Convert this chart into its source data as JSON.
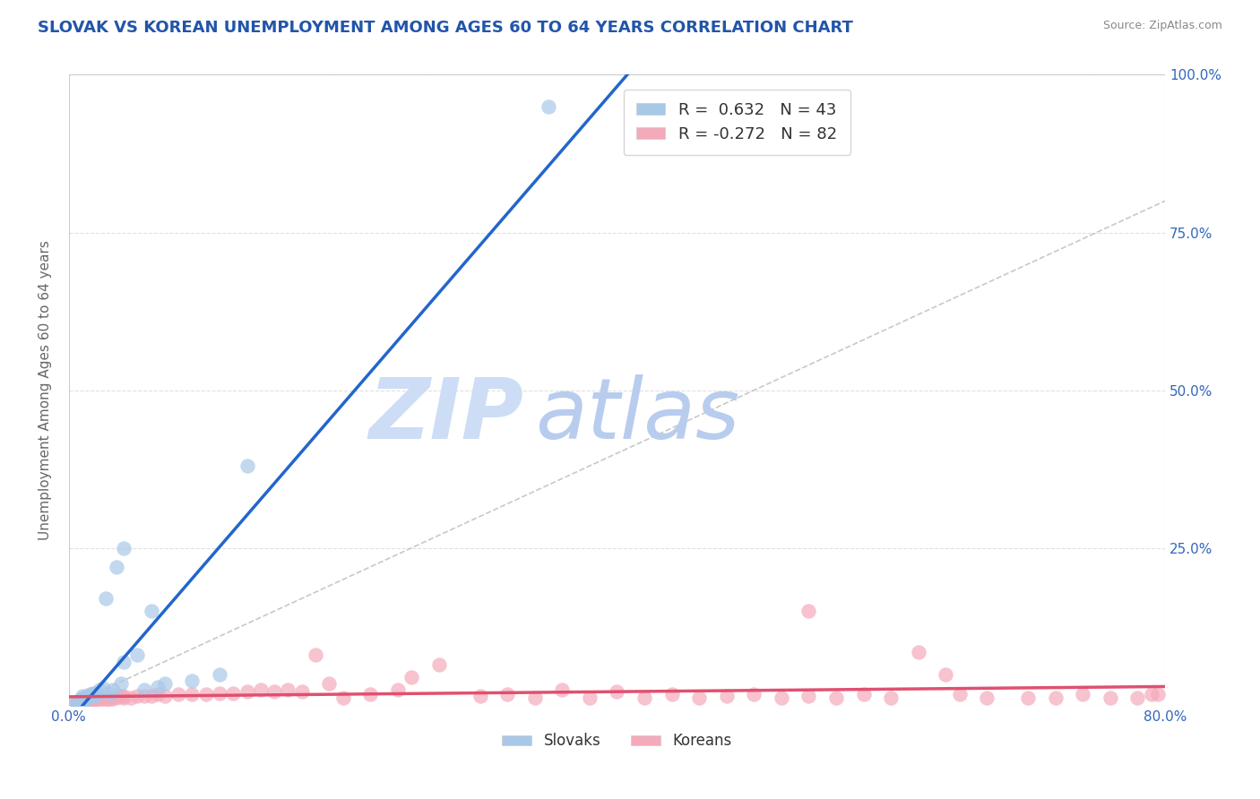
{
  "title": "SLOVAK VS KOREAN UNEMPLOYMENT AMONG AGES 60 TO 64 YEARS CORRELATION CHART",
  "source": "Source: ZipAtlas.com",
  "ylabel": "Unemployment Among Ages 60 to 64 years",
  "xlim": [
    0.0,
    0.8
  ],
  "ylim": [
    0.0,
    1.0
  ],
  "yticks": [
    0.0,
    0.25,
    0.5,
    0.75,
    1.0
  ],
  "ytick_labels_right": [
    "",
    "25.0%",
    "50.0%",
    "75.0%",
    "100.0%"
  ],
  "title_color": "#2255aa",
  "title_fontsize": 13,
  "background_color": "#ffffff",
  "watermark_color": "#ccddf5",
  "watermark_atlas_color": "#b8ccee",
  "legend_R_slovak": "0.632",
  "legend_N_slovak": 43,
  "legend_R_korean": "-0.272",
  "legend_N_korean": 82,
  "slovak_color": "#a8c8e8",
  "korean_color": "#f4aabb",
  "slovak_line_color": "#2266cc",
  "korean_line_color": "#e05070",
  "ref_line_color": "#bbbbbb",
  "grid_color": "#e0e0e0",
  "tick_color": "#3366bb",
  "slovak_x": [
    0.005,
    0.006,
    0.007,
    0.007,
    0.008,
    0.008,
    0.009,
    0.009,
    0.01,
    0.01,
    0.01,
    0.01,
    0.012,
    0.012,
    0.013,
    0.013,
    0.014,
    0.015,
    0.015,
    0.016,
    0.017,
    0.018,
    0.019,
    0.02,
    0.02,
    0.022,
    0.025,
    0.027,
    0.03,
    0.032,
    0.035,
    0.038,
    0.04,
    0.04,
    0.05,
    0.055,
    0.06,
    0.065,
    0.07,
    0.09,
    0.11,
    0.13,
    0.35
  ],
  "slovak_y": [
    0.005,
    0.006,
    0.007,
    0.007,
    0.008,
    0.008,
    0.007,
    0.009,
    0.01,
    0.01,
    0.012,
    0.015,
    0.01,
    0.012,
    0.012,
    0.015,
    0.012,
    0.015,
    0.018,
    0.015,
    0.018,
    0.02,
    0.015,
    0.018,
    0.02,
    0.025,
    0.028,
    0.17,
    0.02,
    0.025,
    0.22,
    0.035,
    0.07,
    0.25,
    0.08,
    0.025,
    0.15,
    0.03,
    0.035,
    0.04,
    0.05,
    0.38,
    0.95
  ],
  "korean_x": [
    0.005,
    0.006,
    0.007,
    0.007,
    0.008,
    0.008,
    0.009,
    0.009,
    0.01,
    0.01,
    0.01,
    0.012,
    0.012,
    0.013,
    0.015,
    0.015,
    0.016,
    0.017,
    0.018,
    0.02,
    0.02,
    0.022,
    0.024,
    0.025,
    0.027,
    0.03,
    0.032,
    0.035,
    0.038,
    0.04,
    0.04,
    0.045,
    0.05,
    0.055,
    0.06,
    0.065,
    0.07,
    0.08,
    0.09,
    0.1,
    0.11,
    0.12,
    0.13,
    0.14,
    0.15,
    0.16,
    0.17,
    0.18,
    0.19,
    0.2,
    0.22,
    0.24,
    0.25,
    0.27,
    0.3,
    0.32,
    0.34,
    0.36,
    0.38,
    0.4,
    0.42,
    0.44,
    0.46,
    0.48,
    0.5,
    0.52,
    0.54,
    0.56,
    0.58,
    0.6,
    0.62,
    0.65,
    0.67,
    0.7,
    0.72,
    0.74,
    0.76,
    0.78,
    0.79,
    0.795,
    0.64,
    0.54
  ],
  "korean_y": [
    0.006,
    0.007,
    0.007,
    0.008,
    0.007,
    0.008,
    0.008,
    0.009,
    0.008,
    0.009,
    0.01,
    0.008,
    0.01,
    0.01,
    0.009,
    0.01,
    0.01,
    0.01,
    0.01,
    0.01,
    0.012,
    0.01,
    0.012,
    0.012,
    0.01,
    0.01,
    0.012,
    0.012,
    0.015,
    0.012,
    0.015,
    0.012,
    0.015,
    0.015,
    0.015,
    0.018,
    0.015,
    0.018,
    0.018,
    0.018,
    0.02,
    0.02,
    0.022,
    0.025,
    0.022,
    0.025,
    0.022,
    0.08,
    0.035,
    0.012,
    0.018,
    0.025,
    0.045,
    0.065,
    0.015,
    0.018,
    0.012,
    0.025,
    0.012,
    0.022,
    0.012,
    0.018,
    0.012,
    0.015,
    0.018,
    0.012,
    0.015,
    0.012,
    0.018,
    0.012,
    0.085,
    0.018,
    0.012,
    0.012,
    0.012,
    0.018,
    0.012,
    0.012,
    0.018,
    0.018,
    0.05,
    0.15
  ]
}
